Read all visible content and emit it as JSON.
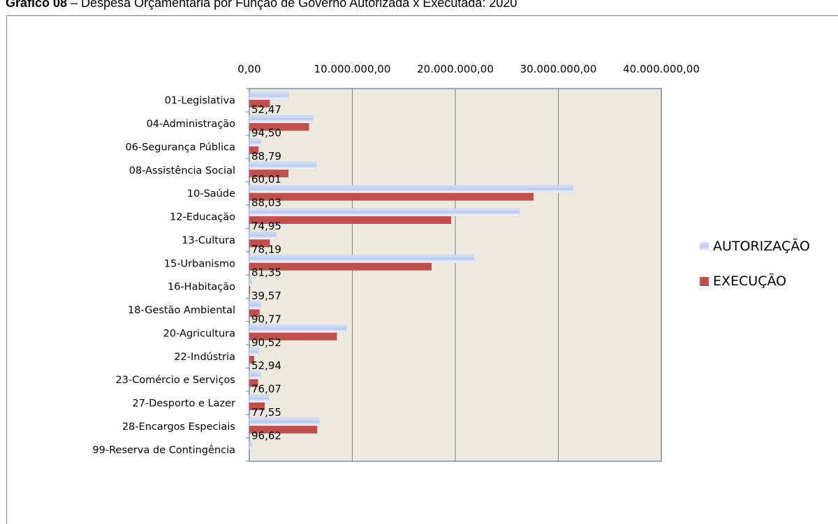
{
  "title": {
    "number": "Gráfico 08",
    "text": " – Despesa Orçamentária por Função de Governo Autorizada x Executada: 2020"
  },
  "colors": {
    "plot_bg": "#ede9df",
    "autorizacao": "#b9c8ee",
    "execucao": "#c0504d",
    "grid": "#808080",
    "plot_border": "#6f8fbf"
  },
  "chart_data": {
    "type": "bar",
    "orientation": "horizontal",
    "categories": [
      "01-Legislativa",
      "04-Administração",
      "06-Segurança Pública",
      "08-Assistência Social",
      "10-Saúde",
      "12-Educação",
      "13-Cultura",
      "15-Urbanismo",
      "16-Habitação",
      "18-Gestão Ambiental",
      "20-Agricultura",
      "22-Indústria",
      "23-Comércio e Serviços",
      "27-Desporto e Lazer",
      "28-Encargos Especiais",
      "99-Reserva de Contingência"
    ],
    "series": [
      {
        "name": "AUTORIZAÇÃO",
        "values": [
          3800000,
          6200000,
          1100000,
          6500000,
          31400000,
          26200000,
          2600000,
          21800000,
          200000,
          1100000,
          9400000,
          900000,
          1100000,
          1900000,
          6800000,
          200000
        ]
      },
      {
        "name": "EXECUÇÃO",
        "values": [
          2000000,
          5800000,
          900000,
          3800000,
          27600000,
          19600000,
          2000000,
          17700000,
          80000,
          1000000,
          8500000,
          480000,
          850000,
          1500000,
          6600000,
          0
        ]
      }
    ],
    "data_labels": [
      "52,47",
      "94,50",
      "88,79",
      "60,01",
      "88,03",
      "74,95",
      "78,19",
      "81,35",
      "39,57",
      "90,77",
      "90,52",
      "52,94",
      "76,07",
      "77,55",
      "96,62",
      ""
    ],
    "x_tick_labels": [
      "0,00",
      "10.000.000,00",
      "20.000.000,00",
      "30.000.000,00",
      "40.000.000,00"
    ],
    "xlim": [
      0,
      40000000
    ],
    "x_axis_position": "top",
    "grid": true,
    "legend_position": "right"
  }
}
